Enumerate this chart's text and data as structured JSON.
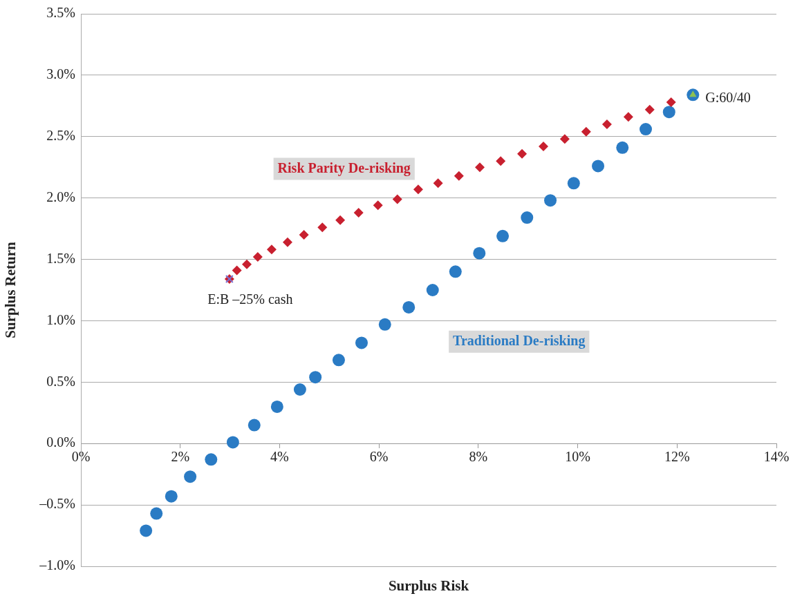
{
  "chart_data": {
    "type": "scatter",
    "xlabel": "Surplus Risk",
    "ylabel": "Surplus Return",
    "xlim": [
      0,
      14
    ],
    "ylim": [
      -1.0,
      3.5
    ],
    "xticks": [
      {
        "value": 0,
        "label": "0%"
      },
      {
        "value": 2,
        "label": "2%"
      },
      {
        "value": 4,
        "label": "4%"
      },
      {
        "value": 6,
        "label": "6%"
      },
      {
        "value": 8,
        "label": "8%"
      },
      {
        "value": 10,
        "label": "10%"
      },
      {
        "value": 12,
        "label": "12%"
      },
      {
        "value": 14,
        "label": "14%"
      }
    ],
    "yticks": [
      {
        "value": -1.0,
        "label": "–1.0%"
      },
      {
        "value": -0.5,
        "label": "–0.5%"
      },
      {
        "value": 0,
        "label": "0.0%"
      },
      {
        "value": 0.5,
        "label": "0.5%"
      },
      {
        "value": 1.0,
        "label": "1.0%"
      },
      {
        "value": 1.5,
        "label": "1.5%"
      },
      {
        "value": 2.0,
        "label": "2.0%"
      },
      {
        "value": 2.5,
        "label": "2.5%"
      },
      {
        "value": 3.0,
        "label": "3.0%"
      },
      {
        "value": 3.5,
        "label": "3.5%"
      }
    ],
    "grid": "y",
    "legend": false,
    "series": [
      {
        "name": "Traditional De-risking",
        "color": "#2a7bc4",
        "marker": "circle",
        "x": [
          1.31,
          1.52,
          1.82,
          2.2,
          2.62,
          3.06,
          3.49,
          3.95,
          4.41,
          4.72,
          5.19,
          5.65,
          6.12,
          6.6,
          7.08,
          7.54,
          8.02,
          8.49,
          8.98,
          9.45,
          9.92,
          10.41,
          10.9,
          11.37,
          11.84,
          12.32
        ],
        "values": [
          -0.71,
          -0.57,
          -0.43,
          -0.27,
          -0.13,
          0.01,
          0.15,
          0.3,
          0.44,
          0.54,
          0.68,
          0.82,
          0.97,
          1.11,
          1.25,
          1.4,
          1.55,
          1.69,
          1.84,
          1.98,
          2.12,
          2.26,
          2.41,
          2.56,
          2.7,
          2.84
        ]
      },
      {
        "name": "Risk Parity De-risking",
        "color": "#c8202f",
        "marker": "diamond",
        "x": [
          2.99,
          3.14,
          3.34,
          3.56,
          3.84,
          4.16,
          4.49,
          4.86,
          5.22,
          5.59,
          5.98,
          6.37,
          6.79,
          7.19,
          7.61,
          8.03,
          8.45,
          8.88,
          9.31,
          9.74,
          10.17,
          10.59,
          11.02,
          11.45,
          11.88
        ],
        "values": [
          1.34,
          1.41,
          1.46,
          1.52,
          1.58,
          1.64,
          1.7,
          1.76,
          1.82,
          1.88,
          1.94,
          1.99,
          2.07,
          2.12,
          2.18,
          2.25,
          2.3,
          2.36,
          2.42,
          2.48,
          2.54,
          2.6,
          2.66,
          2.72,
          2.78
        ]
      },
      {
        "color": "#7b6fcf",
        "marker": "cross",
        "x": [
          2.99
        ],
        "values": [
          1.34
        ]
      },
      {
        "color": "#8cc152",
        "marker": "triangle",
        "x": [
          12.32
        ],
        "values": [
          2.84
        ]
      }
    ],
    "annotations": [
      {
        "text": "E:B –25% cash",
        "x": 2.99,
        "y": 1.34
      },
      {
        "text": "G:60/40",
        "x": 12.32,
        "y": 2.84
      }
    ]
  }
}
